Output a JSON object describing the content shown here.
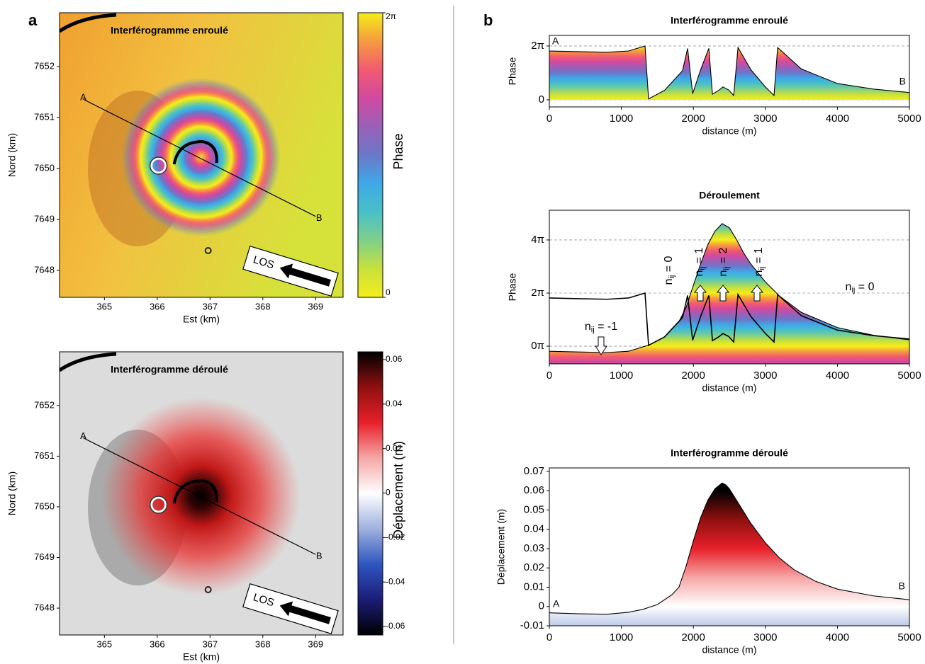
{
  "panel_labels": [
    "a",
    "b"
  ],
  "chart_data": [
    {
      "type": "map",
      "title": "Interférogramme enroulé",
      "xlabel": "Est (km)",
      "ylabel": "Nord (km)",
      "xlim": [
        364.15,
        369.52
      ],
      "ylim": [
        7647.47,
        7653.06
      ],
      "xticks": [
        365,
        366,
        367,
        368,
        369
      ],
      "yticks": [
        7648,
        7649,
        7650,
        7651,
        7652
      ],
      "profile": {
        "labels": [
          "A",
          "B"
        ],
        "x": [
          364.6,
          369.0
        ],
        "y": [
          7651.36,
          7649.06
        ]
      },
      "los_label": "LOS",
      "colorbar": {
        "label": "Phase",
        "lim": [
          0,
          6.2832
        ],
        "ticks": [
          0,
          {
            "value": 6.2832,
            "label": "2π"
          }
        ],
        "colors": [
          "#f5ee1a",
          "#c8e03c",
          "#7fd08a",
          "#48c0c8",
          "#3fa8e8",
          "#6a78c8",
          "#9a60b8",
          "#d04aa0",
          "#f25a70",
          "#f59a40",
          "#f5ee1a"
        ]
      }
    },
    {
      "type": "map",
      "title": "Interférogramme déroulé",
      "xlabel": "Est (km)",
      "ylabel": "Nord (km)",
      "xlim": [
        364.15,
        369.52
      ],
      "ylim": [
        7647.47,
        7653.06
      ],
      "xticks": [
        365,
        366,
        367,
        368,
        369
      ],
      "yticks": [
        7648,
        7649,
        7650,
        7651,
        7652
      ],
      "profile": {
        "labels": [
          "A",
          "B"
        ],
        "x": [
          364.6,
          369.0
        ],
        "y": [
          7651.36,
          7649.06
        ]
      },
      "los_label": "LOS",
      "colorbar": {
        "label": "Déplacement (m)",
        "lim": [
          -0.0638,
          0.0635
        ],
        "ticks": [
          0.06,
          0.04,
          0.02,
          0,
          -0.02,
          -0.04,
          -0.06
        ],
        "colors": [
          "#000000",
          "#1c1c78",
          "#2f56c0",
          "#9fb0de",
          "#ffffff",
          "#f6a6a6",
          "#e8202a",
          "#901010",
          "#000000"
        ]
      }
    },
    {
      "type": "line",
      "title": "Interférogramme enroulé",
      "xlabel": "distance (m)",
      "ylabel": "Phase",
      "xlim": [
        0,
        5000
      ],
      "ylim": [
        -0.83,
        7.52
      ],
      "xticks": [
        0,
        1000,
        2000,
        3000,
        4000,
        5000
      ],
      "yticks": [
        0,
        {
          "value": 6.2832,
          "label": "2π"
        }
      ],
      "grid": true,
      "fill_base": 0,
      "endpoint_labels": [
        "A",
        "B"
      ],
      "colormap": {
        "lim": [
          0,
          6.2832
        ],
        "repeat": false,
        "colors": [
          "#f5ee1a",
          "#c8e03c",
          "#7fd08a",
          "#48c0c8",
          "#3fa8e8",
          "#6a78c8",
          "#9a60b8",
          "#d04aa0",
          "#f25a70",
          "#f59a40",
          "#f5ee1a"
        ]
      },
      "series": [
        {
          "color": "#000000",
          "fill": true,
          "x": [
            0,
            400,
            800,
            1100,
            1329,
            1378,
            1600,
            1850,
            1920,
            1990,
            2100,
            2215,
            2265,
            2360,
            2410,
            2490,
            2560,
            2620,
            2800,
            3000,
            3120,
            3170,
            3500,
            4000,
            4500,
            5000
          ],
          "values": [
            5.7,
            5.62,
            5.55,
            5.7,
            6.28,
            0.1,
            1.1,
            3.4,
            6.0,
            0.7,
            3.5,
            6.0,
            0.65,
            1.15,
            1.5,
            1.15,
            0.5,
            6.1,
            3.5,
            1.5,
            0.5,
            6.1,
            3.6,
            1.9,
            1.25,
            0.85
          ]
        }
      ]
    },
    {
      "type": "line",
      "title": "Déroulement",
      "xlabel": "distance (m)",
      "ylabel": "Phase",
      "xlim": [
        0,
        5000
      ],
      "ylim": [
        -2.09,
        16.08
      ],
      "xticks": [
        0,
        1000,
        2000,
        3000,
        4000,
        5000
      ],
      "yticks": [
        {
          "value": 0,
          "label": "0π"
        },
        {
          "value": 6.2832,
          "label": "2π"
        },
        {
          "value": 12.5664,
          "label": "4π"
        }
      ],
      "grid": true,
      "colormap": {
        "lim": [
          0,
          6.2832
        ],
        "repeat": true,
        "colors": [
          "#f5ee1a",
          "#c8e03c",
          "#7fd08a",
          "#48c0c8",
          "#3fa8e8",
          "#6a78c8",
          "#9a60b8",
          "#d04aa0",
          "#f25a70",
          "#f59a40",
          "#f5ee1a"
        ]
      },
      "annotations": [
        {
          "base": "n",
          "sub": "ij",
          "rest": " = -1"
        },
        {
          "base": "n",
          "sub": "ij",
          "rest": " = 0"
        },
        {
          "base": "n",
          "sub": "ij",
          "rest": " = 1"
        },
        {
          "base": "n",
          "sub": "ij",
          "rest": " = 2"
        },
        {
          "base": "n",
          "sub": "ij",
          "rest": " = 1"
        },
        {
          "base": "n",
          "sub": "ij",
          "rest": " = 0"
        }
      ],
      "series": [
        {
          "color": "#000000",
          "fill": true,
          "x": [
            0,
            400,
            800,
            1100,
            1329,
            1378,
            1600,
            1800,
            1900,
            2000,
            2100,
            2200,
            2300,
            2400,
            2500,
            2600,
            2700,
            2800,
            3000,
            3200,
            3500,
            4000,
            4500,
            5000
          ],
          "values": [
            -0.6,
            -0.68,
            -0.75,
            -0.6,
            0.0,
            0.1,
            1.1,
            2.9,
            4.6,
            7.2,
            9.7,
            12.0,
            13.6,
            14.5,
            14.0,
            12.6,
            11.0,
            9.7,
            7.6,
            5.9,
            4.0,
            2.2,
            1.3,
            0.75
          ]
        },
        {
          "color": "#000000",
          "fill": false,
          "x": [
            0,
            400,
            800,
            1100,
            1329,
            1378,
            1600,
            1850,
            1920,
            1990,
            2100,
            2215,
            2265,
            2360,
            2410,
            2490,
            2560,
            2620,
            2800,
            3000,
            3120,
            3170,
            3500,
            4000,
            4500,
            5000
          ],
          "values": [
            5.7,
            5.62,
            5.55,
            5.7,
            6.28,
            0.1,
            1.1,
            3.4,
            6.0,
            0.7,
            3.5,
            6.0,
            0.65,
            1.15,
            1.5,
            1.15,
            0.5,
            6.1,
            3.5,
            1.5,
            0.5,
            6.1,
            3.6,
            1.9,
            1.25,
            0.85
          ]
        }
      ]
    },
    {
      "type": "line",
      "title": "Interférogramme déroulé",
      "xlabel": "distance (m)",
      "ylabel": "Déplacement (m)",
      "xlim": [
        0,
        5000
      ],
      "ylim": [
        -0.01,
        0.0718
      ],
      "xticks": [
        0,
        1000,
        2000,
        3000,
        4000,
        5000
      ],
      "yticks": [
        -0.01,
        0,
        0.01,
        0.02,
        0.03,
        0.04,
        0.05,
        0.06,
        0.07
      ],
      "grid": false,
      "endpoint_labels": [
        "A",
        "B"
      ],
      "colormap": {
        "lim": [
          -0.06,
          0.06
        ],
        "repeat": false,
        "colors": [
          "#000000",
          "#1c1c78",
          "#2f56c0",
          "#9fb0de",
          "#ffffff",
          "#f6a6a6",
          "#e8202a",
          "#901010",
          "#000000"
        ]
      },
      "series": [
        {
          "color": "#000000",
          "fill": true,
          "x": [
            0,
            400,
            800,
            1100,
            1300,
            1500,
            1700,
            1800,
            1900,
            2000,
            2100,
            2200,
            2300,
            2400,
            2450,
            2500,
            2600,
            2700,
            2800,
            2900,
            3000,
            3200,
            3400,
            3700,
            4000,
            4500,
            5000
          ],
          "values": [
            -0.0033,
            -0.0038,
            -0.004,
            -0.003,
            -0.0015,
            0.001,
            0.006,
            0.01,
            0.021,
            0.034,
            0.046,
            0.055,
            0.061,
            0.064,
            0.063,
            0.061,
            0.055,
            0.049,
            0.043,
            0.038,
            0.033,
            0.025,
            0.019,
            0.013,
            0.009,
            0.0055,
            0.0035
          ]
        }
      ]
    }
  ]
}
